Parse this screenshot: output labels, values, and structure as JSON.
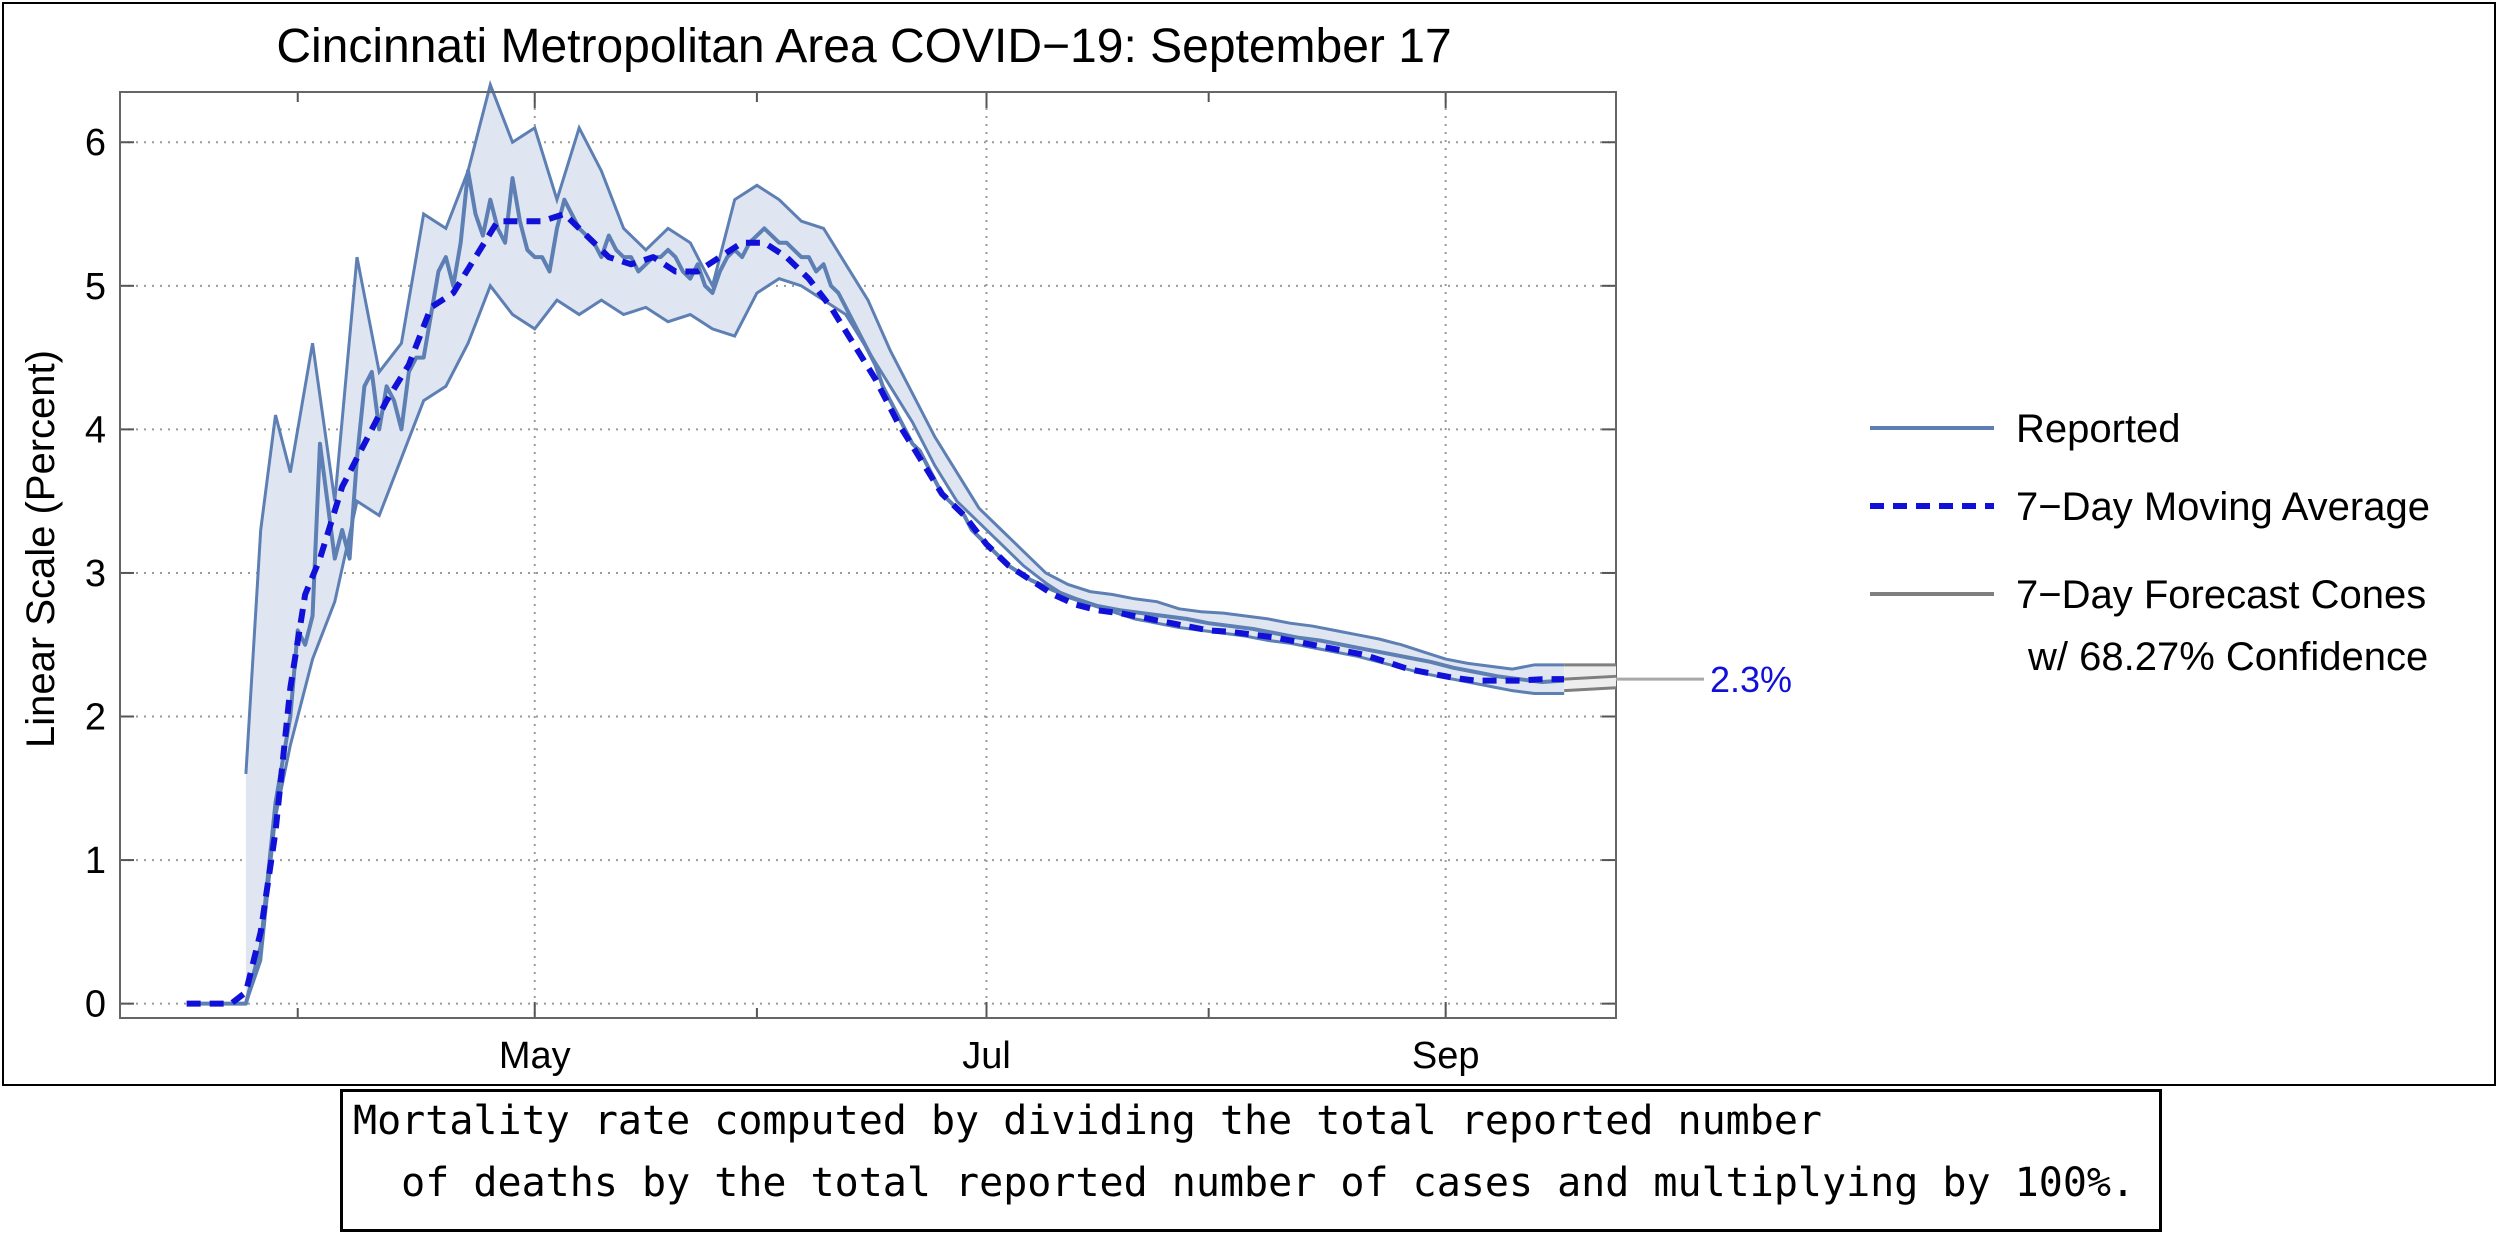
{
  "chart_data": {
    "type": "line",
    "title": "Cincinnati Metropolitan Area COVID−19: September 17",
    "ylabel": "Linear Scale (Percent)",
    "xlabel": "",
    "ylim": [
      -0.1,
      6.35
    ],
    "xlim": [
      "2020-03-06",
      "2020-09-24"
    ],
    "y_ticks": [
      0,
      1,
      2,
      3,
      4,
      5,
      6
    ],
    "x_tick_labels": [
      {
        "date": "2020-05-01",
        "label": "May"
      },
      {
        "date": "2020-07-01",
        "label": "Jul"
      },
      {
        "date": "2020-09-01",
        "label": "Sep"
      }
    ],
    "x_minor_ticks": [
      "2020-03-30",
      "2020-05-31",
      "2020-07-31"
    ],
    "grid": true,
    "legend_position": "right",
    "legend": [
      {
        "label": "Reported",
        "style": "solid",
        "color": "#5d7fb3"
      },
      {
        "label": "7−Day Moving Average",
        "style": "dashed",
        "color": "#1010d8"
      },
      {
        "label": "7−Day Forecast Cones",
        "label2": "w/ 68.27% Confidence",
        "style": "solid",
        "color": "#7f7f7f"
      }
    ],
    "end_label": {
      "text": "2.3%",
      "value": 2.3,
      "color": "#1010d8"
    },
    "series": [
      {
        "name": "Reported",
        "x": [
          "2020-03-15",
          "2020-03-23",
          "2020-03-25",
          "2020-03-26",
          "2020-03-27",
          "2020-03-28",
          "2020-03-29",
          "2020-03-30",
          "2020-03-31",
          "2020-04-01",
          "2020-04-02",
          "2020-04-03",
          "2020-04-04",
          "2020-04-05",
          "2020-04-06",
          "2020-04-07",
          "2020-04-08",
          "2020-04-09",
          "2020-04-10",
          "2020-04-11",
          "2020-04-12",
          "2020-04-13",
          "2020-04-14",
          "2020-04-15",
          "2020-04-16",
          "2020-04-17",
          "2020-04-18",
          "2020-04-19",
          "2020-04-20",
          "2020-04-21",
          "2020-04-22",
          "2020-04-23",
          "2020-04-24",
          "2020-04-25",
          "2020-04-26",
          "2020-04-27",
          "2020-04-28",
          "2020-04-29",
          "2020-04-30",
          "2020-05-01",
          "2020-05-02",
          "2020-05-03",
          "2020-05-04",
          "2020-05-05",
          "2020-05-06",
          "2020-05-07",
          "2020-05-08",
          "2020-05-09",
          "2020-05-10",
          "2020-05-11",
          "2020-05-12",
          "2020-05-13",
          "2020-05-14",
          "2020-05-15",
          "2020-05-16",
          "2020-05-17",
          "2020-05-18",
          "2020-05-19",
          "2020-05-20",
          "2020-05-21",
          "2020-05-22",
          "2020-05-23",
          "2020-05-24",
          "2020-05-25",
          "2020-05-26",
          "2020-05-27",
          "2020-05-28",
          "2020-05-29",
          "2020-05-30",
          "2020-05-31",
          "2020-06-01",
          "2020-06-02",
          "2020-06-03",
          "2020-06-04",
          "2020-06-05",
          "2020-06-06",
          "2020-06-07",
          "2020-06-08",
          "2020-06-09",
          "2020-06-10",
          "2020-06-11",
          "2020-06-12",
          "2020-06-13",
          "2020-06-14",
          "2020-06-15",
          "2020-06-16",
          "2020-06-17",
          "2020-06-18",
          "2020-06-19",
          "2020-06-20",
          "2020-06-21",
          "2020-06-22",
          "2020-06-23",
          "2020-06-24",
          "2020-06-25",
          "2020-06-26",
          "2020-06-27",
          "2020-06-28",
          "2020-06-29",
          "2020-06-30",
          "2020-07-01",
          "2020-07-04",
          "2020-07-07",
          "2020-07-10",
          "2020-07-13",
          "2020-07-16",
          "2020-07-19",
          "2020-07-22",
          "2020-07-25",
          "2020-07-28",
          "2020-07-31",
          "2020-08-03",
          "2020-08-06",
          "2020-08-09",
          "2020-08-12",
          "2020-08-15",
          "2020-08-18",
          "2020-08-21",
          "2020-08-24",
          "2020-08-27",
          "2020-08-30",
          "2020-09-02",
          "2020-09-05",
          "2020-09-08",
          "2020-09-11",
          "2020-09-14",
          "2020-09-17"
        ],
        "values": [
          0,
          0,
          0.4,
          0.9,
          1.4,
          1.7,
          2.0,
          2.6,
          2.5,
          2.7,
          3.9,
          3.5,
          3.1,
          3.3,
          3.1,
          3.8,
          4.3,
          4.4,
          4.0,
          4.3,
          4.2,
          4.0,
          4.4,
          4.5,
          4.5,
          4.8,
          5.1,
          5.2,
          5.0,
          5.3,
          5.8,
          5.5,
          5.35,
          5.6,
          5.4,
          5.3,
          5.75,
          5.45,
          5.25,
          5.2,
          5.2,
          5.1,
          5.4,
          5.6,
          5.5,
          5.4,
          5.35,
          5.3,
          5.2,
          5.35,
          5.25,
          5.2,
          5.2,
          5.1,
          5.15,
          5.2,
          5.2,
          5.25,
          5.2,
          5.1,
          5.05,
          5.15,
          5.0,
          4.95,
          5.1,
          5.2,
          5.25,
          5.2,
          5.3,
          5.35,
          5.4,
          5.35,
          5.3,
          5.3,
          5.25,
          5.2,
          5.2,
          5.1,
          5.15,
          5.0,
          4.95,
          4.85,
          4.75,
          4.65,
          4.55,
          4.45,
          4.3,
          4.2,
          4.1,
          4.0,
          3.9,
          3.85,
          3.75,
          3.65,
          3.55,
          3.5,
          3.45,
          3.4,
          3.3,
          3.25,
          3.2,
          3.05,
          2.95,
          2.88,
          2.82,
          2.77,
          2.74,
          2.72,
          2.7,
          2.68,
          2.65,
          2.63,
          2.61,
          2.58,
          2.55,
          2.53,
          2.5,
          2.47,
          2.44,
          2.41,
          2.38,
          2.34,
          2.31,
          2.28,
          2.26,
          2.24,
          2.25
        ]
      },
      {
        "name": "7−Day Moving Average",
        "x": [
          "2020-03-15",
          "2020-03-21",
          "2020-03-23",
          "2020-03-25",
          "2020-03-27",
          "2020-03-29",
          "2020-03-31",
          "2020-04-02",
          "2020-04-05",
          "2020-04-08",
          "2020-04-11",
          "2020-04-14",
          "2020-04-17",
          "2020-04-20",
          "2020-04-23",
          "2020-04-26",
          "2020-04-29",
          "2020-05-02",
          "2020-05-05",
          "2020-05-08",
          "2020-05-11",
          "2020-05-14",
          "2020-05-17",
          "2020-05-20",
          "2020-05-23",
          "2020-05-26",
          "2020-05-29",
          "2020-06-01",
          "2020-06-04",
          "2020-06-07",
          "2020-06-10",
          "2020-06-13",
          "2020-06-16",
          "2020-06-19",
          "2020-06-22",
          "2020-06-25",
          "2020-06-28",
          "2020-07-01",
          "2020-07-04",
          "2020-07-07",
          "2020-07-10",
          "2020-07-13",
          "2020-07-16",
          "2020-07-19",
          "2020-07-22",
          "2020-07-25",
          "2020-07-28",
          "2020-07-31",
          "2020-08-03",
          "2020-08-06",
          "2020-08-09",
          "2020-08-12",
          "2020-08-15",
          "2020-08-18",
          "2020-08-21",
          "2020-08-24",
          "2020-08-27",
          "2020-08-30",
          "2020-09-02",
          "2020-09-05",
          "2020-09-08",
          "2020-09-11",
          "2020-09-14",
          "2020-09-17"
        ],
        "values": [
          0,
          0,
          0.08,
          0.5,
          1.2,
          2.2,
          2.85,
          3.1,
          3.6,
          3.9,
          4.2,
          4.45,
          4.85,
          4.95,
          5.2,
          5.45,
          5.45,
          5.45,
          5.5,
          5.35,
          5.2,
          5.15,
          5.2,
          5.1,
          5.1,
          5.2,
          5.3,
          5.3,
          5.2,
          5.05,
          4.85,
          4.6,
          4.35,
          4.05,
          3.8,
          3.55,
          3.4,
          3.2,
          3.05,
          2.95,
          2.85,
          2.78,
          2.74,
          2.72,
          2.69,
          2.66,
          2.63,
          2.6,
          2.59,
          2.57,
          2.55,
          2.52,
          2.49,
          2.46,
          2.43,
          2.38,
          2.33,
          2.3,
          2.27,
          2.25,
          2.25,
          2.25,
          2.26,
          2.26
        ]
      }
    ],
    "confidence_band": {
      "x": [
        "2020-03-23",
        "2020-03-25",
        "2020-03-27",
        "2020-03-29",
        "2020-04-01",
        "2020-04-04",
        "2020-04-07",
        "2020-04-10",
        "2020-04-13",
        "2020-04-16",
        "2020-04-19",
        "2020-04-22",
        "2020-04-25",
        "2020-04-28",
        "2020-05-01",
        "2020-05-04",
        "2020-05-07",
        "2020-05-10",
        "2020-05-13",
        "2020-05-16",
        "2020-05-19",
        "2020-05-22",
        "2020-05-25",
        "2020-05-28",
        "2020-05-31",
        "2020-06-03",
        "2020-06-06",
        "2020-06-09",
        "2020-06-12",
        "2020-06-15",
        "2020-06-18",
        "2020-06-21",
        "2020-06-24",
        "2020-06-27",
        "2020-06-30",
        "2020-07-03",
        "2020-07-06",
        "2020-07-09",
        "2020-07-12",
        "2020-07-15",
        "2020-07-18",
        "2020-07-21",
        "2020-07-24",
        "2020-07-27",
        "2020-07-30",
        "2020-08-02",
        "2020-08-05",
        "2020-08-08",
        "2020-08-11",
        "2020-08-14",
        "2020-08-17",
        "2020-08-20",
        "2020-08-23",
        "2020-08-26",
        "2020-08-29",
        "2020-09-01",
        "2020-09-04",
        "2020-09-07",
        "2020-09-10",
        "2020-09-13",
        "2020-09-17"
      ],
      "upper": [
        1.6,
        3.3,
        4.1,
        3.7,
        4.6,
        3.5,
        5.2,
        4.4,
        4.6,
        5.5,
        5.4,
        5.8,
        6.4,
        6.0,
        6.1,
        5.6,
        6.1,
        5.8,
        5.4,
        5.25,
        5.4,
        5.3,
        5.0,
        5.6,
        5.7,
        5.6,
        5.45,
        5.4,
        5.15,
        4.9,
        4.55,
        4.25,
        3.95,
        3.7,
        3.45,
        3.3,
        3.15,
        3.0,
        2.92,
        2.87,
        2.85,
        2.82,
        2.8,
        2.75,
        2.73,
        2.72,
        2.7,
        2.68,
        2.65,
        2.63,
        2.6,
        2.57,
        2.54,
        2.5,
        2.45,
        2.4,
        2.37,
        2.35,
        2.33,
        2.36,
        2.36
      ],
      "lower": [
        0,
        0.3,
        1.3,
        1.8,
        2.4,
        2.8,
        3.5,
        3.4,
        3.8,
        4.2,
        4.3,
        4.6,
        5.0,
        4.8,
        4.7,
        4.9,
        4.8,
        4.9,
        4.8,
        4.85,
        4.75,
        4.8,
        4.7,
        4.65,
        4.95,
        5.05,
        5.0,
        4.9,
        4.8,
        4.55,
        4.3,
        4.05,
        3.75,
        3.5,
        3.35,
        3.2,
        3.05,
        2.93,
        2.83,
        2.78,
        2.73,
        2.68,
        2.65,
        2.62,
        2.6,
        2.58,
        2.56,
        2.53,
        2.51,
        2.48,
        2.45,
        2.42,
        2.38,
        2.34,
        2.3,
        2.27,
        2.24,
        2.21,
        2.18,
        2.16,
        2.16
      ]
    },
    "forecast_cone": {
      "x": [
        "2020-09-17",
        "2020-09-24"
      ],
      "upper": [
        2.36,
        2.36
      ],
      "center": [
        2.26,
        2.28
      ],
      "lower": [
        2.18,
        2.2
      ],
      "label_line_value": 2.26
    }
  },
  "note": {
    "line1": "Mortality rate computed by dividing the total reported number",
    "line2": "  of deaths by the total reported number of cases and multiplying by 100%."
  }
}
